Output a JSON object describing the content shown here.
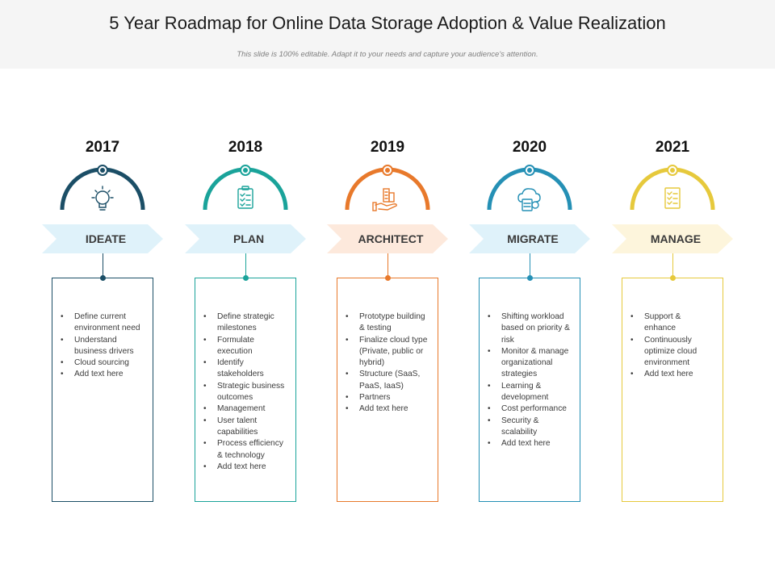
{
  "title": "5 Year Roadmap for Online Data Storage Adoption & Value Realization",
  "subtitle": "This slide is 100% editable. Adapt it to your needs and capture your audience's attention.",
  "stages": [
    {
      "year": "2017",
      "label": "IDEATE",
      "color": "#1b4e66",
      "light": "#dff2fa",
      "icon": "lightbulb-icon",
      "items": [
        "Define current environment need",
        "Understand business drivers",
        "Cloud sourcing",
        "Add text here"
      ]
    },
    {
      "year": "2018",
      "label": "PLAN",
      "color": "#1aa39a",
      "light": "#dff2fa",
      "icon": "clipboard-checklist-icon",
      "items": [
        "Define strategic milestones",
        "Formulate execution",
        "Identify stakeholders",
        "Strategic business outcomes",
        "Management",
        "User talent capabilities",
        "Process efficiency & technology",
        "Add text here"
      ]
    },
    {
      "year": "2019",
      "label": "ARCHITECT",
      "color": "#e8792b",
      "light": "#fde9dc",
      "icon": "hand-holding-buildings-icon",
      "items": [
        "Prototype building & testing",
        "Finalize cloud type (Private, public or hybrid)",
        "Structure (SaaS, PaaS, IaaS)",
        "Partners",
        "Add text here"
      ]
    },
    {
      "year": "2020",
      "label": "MIGRATE",
      "color": "#2590b5",
      "light": "#dff2fa",
      "icon": "cloud-server-icon",
      "items": [
        "Shifting workload based on priority & risk",
        "Monitor & manage organizational strategies",
        "Learning & development",
        "Cost performance",
        "Security & scalability",
        "Add text here"
      ]
    },
    {
      "year": "2021",
      "label": "MANAGE",
      "color": "#e6c93c",
      "light": "#fdf5dc",
      "icon": "checklist-document-icon",
      "items": [
        "Support & enhance",
        "Continuously optimize cloud environment",
        "Add text here"
      ]
    }
  ]
}
